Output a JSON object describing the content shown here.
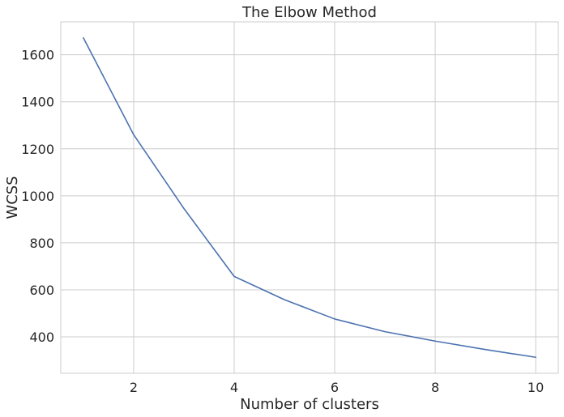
{
  "chart_data": {
    "type": "line",
    "title": "The Elbow Method",
    "xlabel": "Number of clusters",
    "ylabel": "WCSS",
    "x": [
      1,
      2,
      3,
      4,
      5,
      6,
      7,
      8,
      9,
      10
    ],
    "series": [
      {
        "values": [
          1672,
          1260,
          946,
          657,
          558,
          476,
          422,
          382,
          346,
          313
        ],
        "color": "#4c72b0"
      }
    ],
    "xlim": [
      0.55,
      10.45
    ],
    "ylim": [
      245,
      1740
    ],
    "x_ticks": [
      2,
      4,
      6,
      8,
      10
    ],
    "y_ticks": [
      400,
      600,
      800,
      1000,
      1200,
      1400,
      1600
    ],
    "grid": true
  }
}
